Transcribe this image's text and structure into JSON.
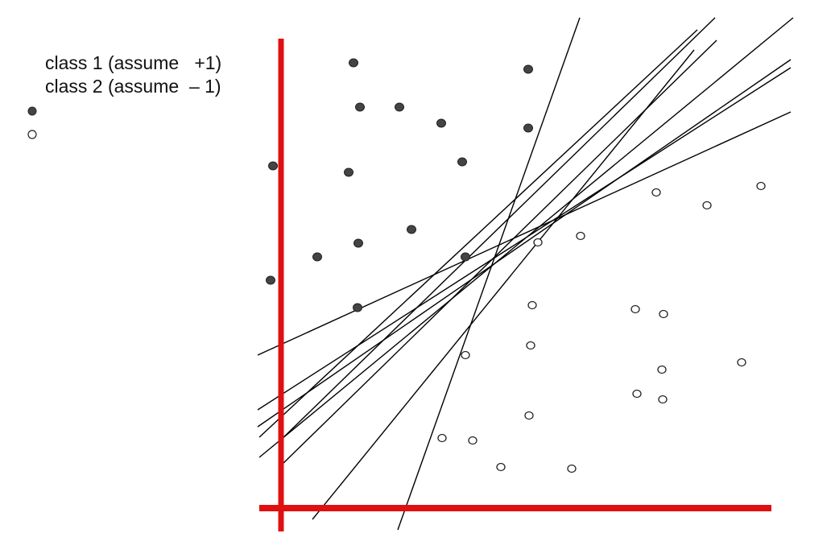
{
  "legend": {
    "class1_label": "class 1 (assume   +1)",
    "class2_label": "class 2 (assume  – 1)"
  },
  "colors": {
    "axis": "#e01010",
    "line": "#000000",
    "class1_fill": "#444444",
    "class2_fill": "#ffffff",
    "marker_stroke": "#222222"
  },
  "icons": {
    "class1_marker": "filled-circle-icon",
    "class2_marker": "hollow-circle-icon"
  }
}
